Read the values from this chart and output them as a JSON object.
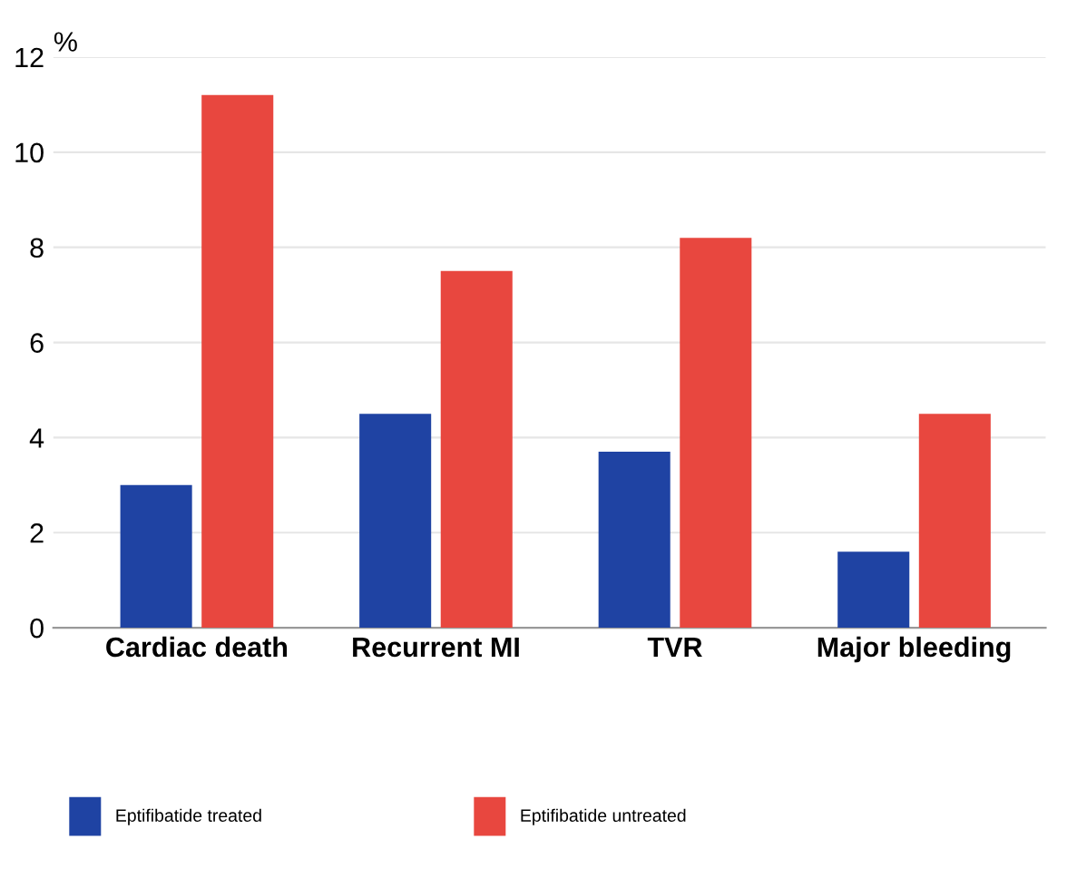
{
  "chart_data": {
    "type": "bar",
    "ylabel": "%",
    "categories": [
      "Cardiac death",
      "Recurrent MI",
      "TVR",
      "Major bleeding"
    ],
    "series": [
      {
        "name": "Eptifibatide treated",
        "color": "#1f43a3",
        "values": [
          3.0,
          4.5,
          3.7,
          1.6
        ]
      },
      {
        "name": "Eptifibatide untreated",
        "color": "#e8473f",
        "values": [
          11.2,
          7.5,
          8.2,
          4.5
        ]
      }
    ],
    "ylim": [
      0,
      12
    ],
    "yticks": [
      0,
      2,
      4,
      6,
      8,
      10,
      12
    ],
    "grid": "y",
    "legend": "bottom"
  }
}
